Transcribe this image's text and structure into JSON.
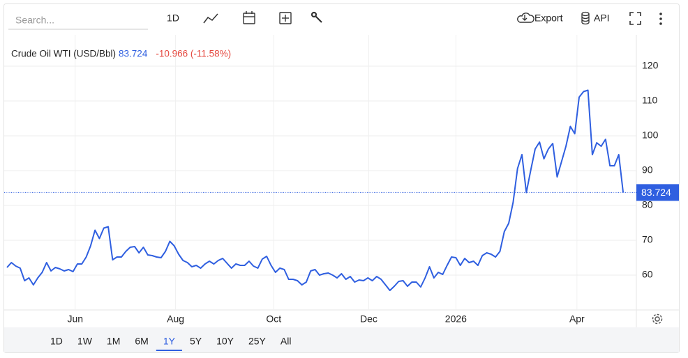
{
  "toolbar": {
    "search_placeholder": "Search...",
    "interval": "1D",
    "export": "Export",
    "api": "API"
  },
  "chart_data": {
    "type": "line",
    "title": "Crude Oil WTI (USD/Bbl)",
    "change": "-10.966 (-11.58%)",
    "series": [
      {
        "name": "Crude Oil WTI (USD/Bbl)",
        "color": "#2f5fe0",
        "values": [
          62.2,
          63.6,
          62.6,
          62,
          58.4,
          59.2,
          57.2,
          59.2,
          60.8,
          63.6,
          61.2,
          62.2,
          61.8,
          61.2,
          61.6,
          61,
          63.2,
          63.2,
          65.2,
          68.4,
          72.9,
          70.5,
          73.5,
          73.9,
          64.4,
          65.2,
          65.2,
          66.8,
          68,
          68.2,
          66.4,
          68,
          65.8,
          65.6,
          65.2,
          65,
          66.8,
          69.7,
          68.4,
          66,
          64.2,
          63.6,
          62.4,
          62.8,
          62,
          63.2,
          64,
          63.2,
          64.2,
          64.8,
          63.4,
          62,
          63.2,
          62.8,
          62.8,
          64,
          62.6,
          62,
          64.6,
          65.4,
          62.8,
          60.8,
          62,
          61.6,
          58.8,
          58.8,
          58.4,
          57.2,
          58,
          61.2,
          61.6,
          60,
          60.4,
          60.6,
          60,
          59.2,
          60.4,
          58.8,
          59.6,
          58,
          58.6,
          58.4,
          59.2,
          58.4,
          59.6,
          58.8,
          57.2,
          55.6,
          56.8,
          58.2,
          58.4,
          56.8,
          58,
          58,
          56.6,
          59.2,
          62.4,
          59.2,
          60.8,
          60.2,
          62.8,
          65.2,
          65,
          62.8,
          64.8,
          63.6,
          64,
          62.8,
          65.6,
          66.4,
          66,
          65.2,
          66.8,
          72.5,
          74.9,
          80.9,
          90.6,
          94.6,
          83.7,
          90.1,
          96.2,
          98.2,
          93.4,
          96.2,
          97.8,
          88.2,
          92.6,
          97,
          102.7,
          100.6,
          111.1,
          112.7,
          113.1,
          94.6,
          98,
          97,
          99,
          91.4,
          91.4,
          94.6,
          83.724
        ]
      }
    ],
    "xlim": [
      0,
      143
    ],
    "xticks": [
      {
        "value": 15.5,
        "label": "Jun"
      },
      {
        "value": 38.3,
        "label": "Aug"
      },
      {
        "value": 60.6,
        "label": "Oct"
      },
      {
        "value": 82.2,
        "label": "Dec"
      },
      {
        "value": 102,
        "label": "2026"
      },
      {
        "value": 129.5,
        "label": "Apr"
      }
    ],
    "ylim": [
      50,
      129
    ],
    "yticks": [
      60,
      70,
      80,
      90,
      100,
      110,
      120
    ],
    "grid": true
  },
  "range_buttons": [
    "1D",
    "1W",
    "1M",
    "6M",
    "1Y",
    "5Y",
    "10Y",
    "25Y",
    "All"
  ],
  "selected_range": "1Y"
}
